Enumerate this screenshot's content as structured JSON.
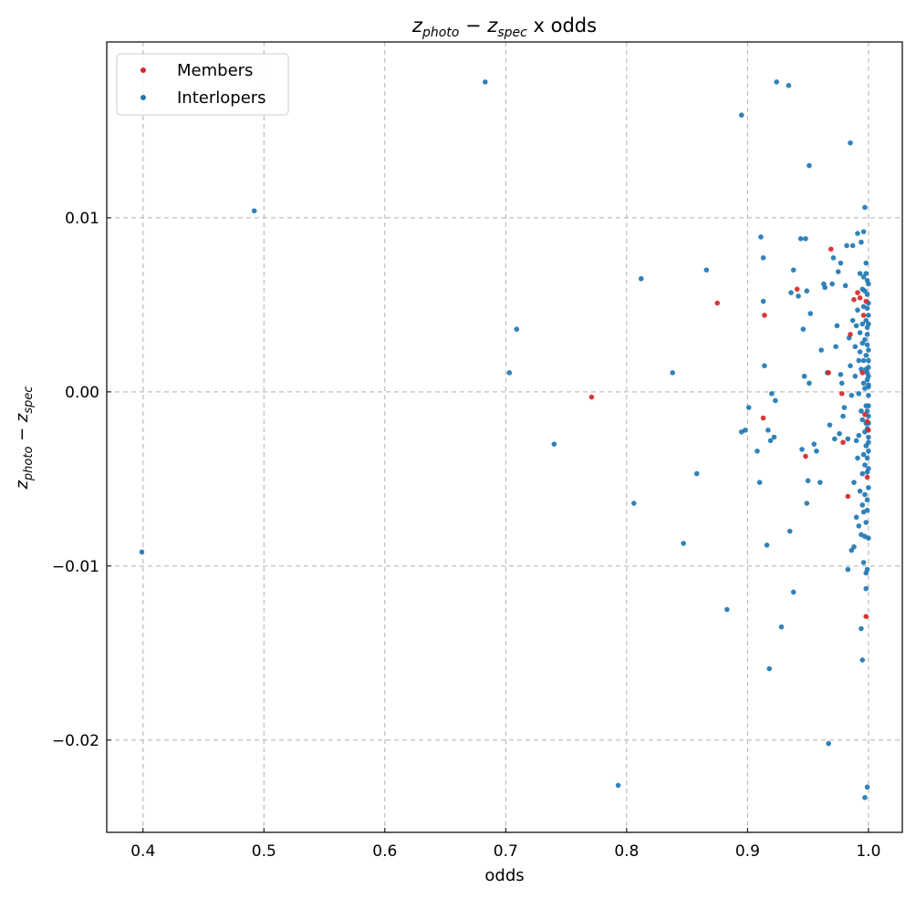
{
  "chart_data": {
    "type": "scatter",
    "title_math": {
      "z1": "z",
      "sub1": "photo",
      "op": " − ",
      "z2": "z",
      "sub2": "spec",
      "rest": " x odds"
    },
    "xlabel": "odds",
    "ylabel_math": {
      "z1": "z",
      "sub1": "photo",
      "op": " − ",
      "z2": "z",
      "sub2": "spec"
    },
    "xlim": [
      0.37,
      1.028
    ],
    "ylim": [
      -0.0253,
      0.0201
    ],
    "xticks": [
      0.4,
      0.5,
      0.6,
      0.7,
      0.8,
      0.9,
      1.0
    ],
    "xtick_labels": [
      "0.4",
      "0.5",
      "0.6",
      "0.7",
      "0.8",
      "0.9",
      "1.0"
    ],
    "yticks": [
      0.01,
      0.0,
      -0.01,
      -0.02
    ],
    "ytick_labels": [
      "0.01",
      "0.00",
      "−0.01",
      "−0.02"
    ],
    "grid": true,
    "legend": "top-left",
    "series": [
      {
        "name": "Members",
        "color": "#d62728",
        "points": [
          [
            0.771,
            -0.0003
          ],
          [
            0.875,
            0.0051
          ],
          [
            0.914,
            0.0044
          ],
          [
            0.913,
            -0.0015
          ],
          [
            0.941,
            0.0059
          ],
          [
            0.948,
            -0.0037
          ],
          [
            0.967,
            0.0011
          ],
          [
            0.969,
            0.0082
          ],
          [
            0.978,
            -0.0001
          ],
          [
            0.979,
            -0.0029
          ],
          [
            0.983,
            -0.006
          ],
          [
            0.985,
            0.0033
          ],
          [
            0.988,
            0.0053
          ],
          [
            0.991,
            0.0057
          ],
          [
            0.993,
            0.0054
          ],
          [
            0.995,
            0.0011
          ],
          [
            0.996,
            0.0044
          ],
          [
            0.997,
            -0.0013
          ],
          [
            0.998,
            0.0052
          ],
          [
            0.998,
            -0.0129
          ],
          [
            0.999,
            -0.0017
          ],
          [
            1.0,
            -0.0022
          ],
          [
            0.999,
            -0.0049
          ]
        ]
      },
      {
        "name": "Interlopers",
        "color": "#1f77b4",
        "points": [
          [
            0.399,
            -0.0092
          ],
          [
            0.492,
            0.0104
          ],
          [
            0.683,
            0.0178
          ],
          [
            0.703,
            0.0011
          ],
          [
            0.709,
            0.0036
          ],
          [
            0.74,
            -0.003
          ],
          [
            0.793,
            -0.0226
          ],
          [
            0.806,
            -0.0064
          ],
          [
            0.812,
            0.0065
          ],
          [
            0.838,
            0.0011
          ],
          [
            0.847,
            -0.0087
          ],
          [
            0.858,
            -0.0047
          ],
          [
            0.866,
            0.007
          ],
          [
            0.883,
            -0.0125
          ],
          [
            0.895,
            0.0159
          ],
          [
            0.895,
            -0.0023
          ],
          [
            0.898,
            -0.0022
          ],
          [
            0.901,
            -0.0009
          ],
          [
            0.908,
            -0.0034
          ],
          [
            0.91,
            -0.0052
          ],
          [
            0.911,
            0.0089
          ],
          [
            0.913,
            0.0052
          ],
          [
            0.913,
            0.0077
          ],
          [
            0.914,
            0.0015
          ],
          [
            0.916,
            -0.0088
          ],
          [
            0.917,
            -0.0022
          ],
          [
            0.918,
            -0.0159
          ],
          [
            0.919,
            -0.0028
          ],
          [
            0.92,
            -0.0001
          ],
          [
            0.922,
            -0.0026
          ],
          [
            0.923,
            -0.0005
          ],
          [
            0.924,
            0.0178
          ],
          [
            0.928,
            -0.0135
          ],
          [
            0.934,
            0.0176
          ],
          [
            0.935,
            -0.008
          ],
          [
            0.936,
            0.0057
          ],
          [
            0.938,
            0.007
          ],
          [
            0.938,
            -0.0115
          ],
          [
            0.942,
            0.0055
          ],
          [
            0.944,
            0.0088
          ],
          [
            0.945,
            -0.0033
          ],
          [
            0.946,
            0.0036
          ],
          [
            0.947,
            0.0009
          ],
          [
            0.948,
            0.0088
          ],
          [
            0.949,
            0.0058
          ],
          [
            0.949,
            -0.0064
          ],
          [
            0.95,
            -0.0051
          ],
          [
            0.951,
            0.013
          ],
          [
            0.952,
            0.0045
          ],
          [
            0.951,
            0.0005
          ],
          [
            0.955,
            -0.003
          ],
          [
            0.957,
            -0.0034
          ],
          [
            0.96,
            -0.0052
          ],
          [
            0.961,
            0.0024
          ],
          [
            0.963,
            0.0062
          ],
          [
            0.964,
            0.006
          ],
          [
            0.966,
            0.0011
          ],
          [
            0.967,
            -0.0202
          ],
          [
            0.968,
            -0.0019
          ],
          [
            0.97,
            0.0062
          ],
          [
            0.971,
            0.0077
          ],
          [
            0.972,
            -0.0027
          ],
          [
            0.973,
            0.0026
          ],
          [
            0.974,
            0.0038
          ],
          [
            0.975,
            0.0069
          ],
          [
            0.976,
            -0.0024
          ],
          [
            0.977,
            0.0074
          ],
          [
            0.977,
            0.001
          ],
          [
            0.978,
            0.0005
          ],
          [
            0.979,
            -0.0014
          ],
          [
            0.98,
            -0.0009
          ],
          [
            0.981,
            0.0061
          ],
          [
            0.982,
            0.0084
          ],
          [
            0.983,
            -0.0102
          ],
          [
            0.983,
            -0.0027
          ],
          [
            0.984,
            0.0031
          ],
          [
            0.985,
            0.0143
          ],
          [
            0.985,
            0.0015
          ],
          [
            0.986,
            -0.0091
          ],
          [
            0.986,
            -0.0002
          ],
          [
            0.987,
            0.0084
          ],
          [
            0.987,
            0.0041
          ],
          [
            0.988,
            -0.0052
          ],
          [
            0.988,
            -0.0089
          ],
          [
            0.989,
            0.0026
          ],
          [
            0.989,
            0.0009
          ],
          [
            0.99,
            0.0038
          ],
          [
            0.99,
            -0.0072
          ],
          [
            0.99,
            -0.0028
          ],
          [
            0.991,
            0.0091
          ],
          [
            0.991,
            -0.0038
          ],
          [
            0.991,
            0.0047
          ],
          [
            0.992,
            0.0018
          ],
          [
            0.992,
            -0.0001
          ],
          [
            0.992,
            -0.0077
          ],
          [
            0.992,
            -0.0025
          ],
          [
            0.993,
            0.0068
          ],
          [
            0.993,
            0.0023
          ],
          [
            0.993,
            -0.0057
          ],
          [
            0.993,
            0.0034
          ],
          [
            0.994,
            0.0086
          ],
          [
            0.994,
            -0.0136
          ],
          [
            0.994,
            -0.0011
          ],
          [
            0.994,
            0.0013
          ],
          [
            0.994,
            -0.0082
          ],
          [
            0.995,
            0.0059
          ],
          [
            0.995,
            -0.0047
          ],
          [
            0.995,
            -0.0016
          ],
          [
            0.995,
            -0.0154
          ],
          [
            0.995,
            0.0028
          ],
          [
            0.995,
            0.0039
          ],
          [
            0.995,
            -0.0065
          ],
          [
            0.996,
            0.0092
          ],
          [
            0.996,
            0.0005
          ],
          [
            0.996,
            -0.0036
          ],
          [
            0.996,
            0.0018
          ],
          [
            0.996,
            -0.0069
          ],
          [
            0.996,
            0.0049
          ],
          [
            0.996,
            -0.0098
          ],
          [
            0.996,
            0.0066
          ],
          [
            0.997,
            0.0106
          ],
          [
            0.997,
            -0.0083
          ],
          [
            0.997,
            -0.0042
          ],
          [
            0.997,
            0.0002
          ],
          [
            0.997,
            0.003
          ],
          [
            0.997,
            -0.0059
          ],
          [
            0.997,
            -0.0233
          ],
          [
            0.997,
            0.0058
          ],
          [
            0.997,
            -0.0023
          ],
          [
            0.998,
            0.0068
          ],
          [
            0.998,
            -0.0075
          ],
          [
            0.998,
            -0.0008
          ],
          [
            0.998,
            0.0013
          ],
          [
            0.998,
            0.0041
          ],
          [
            0.998,
            -0.0104
          ],
          [
            0.998,
            -0.0018
          ],
          [
            0.998,
            0.0074
          ],
          [
            0.998,
            -0.0031
          ],
          [
            0.998,
            0.0021
          ],
          [
            0.998,
            -0.0113
          ],
          [
            0.999,
            0.0037
          ],
          [
            0.999,
            -0.0062
          ],
          [
            0.999,
            0.0064
          ],
          [
            0.999,
            -0.0227
          ],
          [
            0.999,
            0.0007
          ],
          [
            0.999,
            -0.0046
          ],
          [
            0.999,
            0.0048
          ],
          [
            0.999,
            -0.0021
          ],
          [
            0.999,
            0.0027
          ],
          [
            0.999,
            -0.0038
          ],
          [
            0.999,
            0.0011
          ],
          [
            0.999,
            -0.0102
          ],
          [
            0.999,
            0.0056
          ],
          [
            0.999,
            -0.0011
          ],
          [
            0.999,
            0.0033
          ],
          [
            0.999,
            -0.0068
          ],
          [
            1.0,
            0.0018
          ],
          [
            1.0,
            -0.0029
          ],
          [
            1.0,
            0.0044
          ],
          [
            1.0,
            -0.0055
          ],
          [
            1.0,
            0.0004
          ],
          [
            1.0,
            -0.0084
          ],
          [
            1.0,
            0.0062
          ],
          [
            1.0,
            -0.0014
          ],
          [
            1.0,
            0.0024
          ],
          [
            1.0,
            -0.0044
          ],
          [
            1.0,
            0.0009
          ],
          [
            1.0,
            -0.0008
          ],
          [
            1.0,
            0.0039
          ],
          [
            1.0,
            -0.0034
          ],
          [
            1.0,
            0.0014
          ],
          [
            1.0,
            -0.0002
          ],
          [
            1.0,
            0.0051
          ],
          [
            1.0,
            -0.0026
          ],
          [
            1.0,
            0.0003
          ],
          [
            1.0,
            -0.0018
          ]
        ]
      }
    ]
  }
}
